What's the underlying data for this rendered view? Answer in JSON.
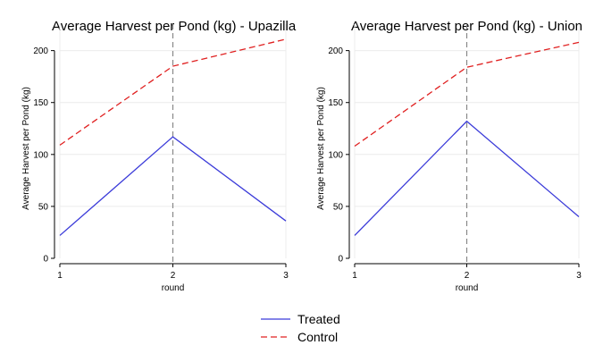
{
  "chart_data": [
    {
      "type": "line",
      "title": "Average Harvest per Pond (kg) - Upazilla",
      "xlabel": "round",
      "ylabel": "Average Harvest per Pond (kg)",
      "x": [
        1,
        2,
        3
      ],
      "xticks": [
        "1",
        "2",
        "3"
      ],
      "ylim": [
        0,
        210
      ],
      "yticks": [
        "0",
        "50",
        "100",
        "150",
        "200"
      ],
      "grid": true,
      "reference_line_x": 2,
      "series": [
        {
          "name": "Treated",
          "values": [
            22,
            117,
            36
          ],
          "color": "#3b3bd9",
          "dash": "solid"
        },
        {
          "name": "Control",
          "values": [
            109,
            185,
            211
          ],
          "color": "#e02020",
          "dash": "dashed"
        }
      ]
    },
    {
      "type": "line",
      "title": "Average Harvest per Pond (kg) - Union",
      "xlabel": "round",
      "ylabel": "Average Harvest per Pond (kg)",
      "x": [
        1,
        2,
        3
      ],
      "xticks": [
        "1",
        "2",
        "3"
      ],
      "ylim": [
        0,
        210
      ],
      "yticks": [
        "0",
        "50",
        "100",
        "150",
        "200"
      ],
      "grid": true,
      "reference_line_x": 2,
      "series": [
        {
          "name": "Treated",
          "values": [
            22,
            132,
            40
          ],
          "color": "#3b3bd9",
          "dash": "solid"
        },
        {
          "name": "Control",
          "values": [
            108,
            184,
            208
          ],
          "color": "#e02020",
          "dash": "dashed"
        }
      ]
    }
  ],
  "legend": {
    "placement": "bottom",
    "items": [
      {
        "label": "Treated",
        "color": "#3b3bd9",
        "dash": "solid"
      },
      {
        "label": "Control",
        "color": "#e02020",
        "dash": "dashed"
      }
    ]
  }
}
